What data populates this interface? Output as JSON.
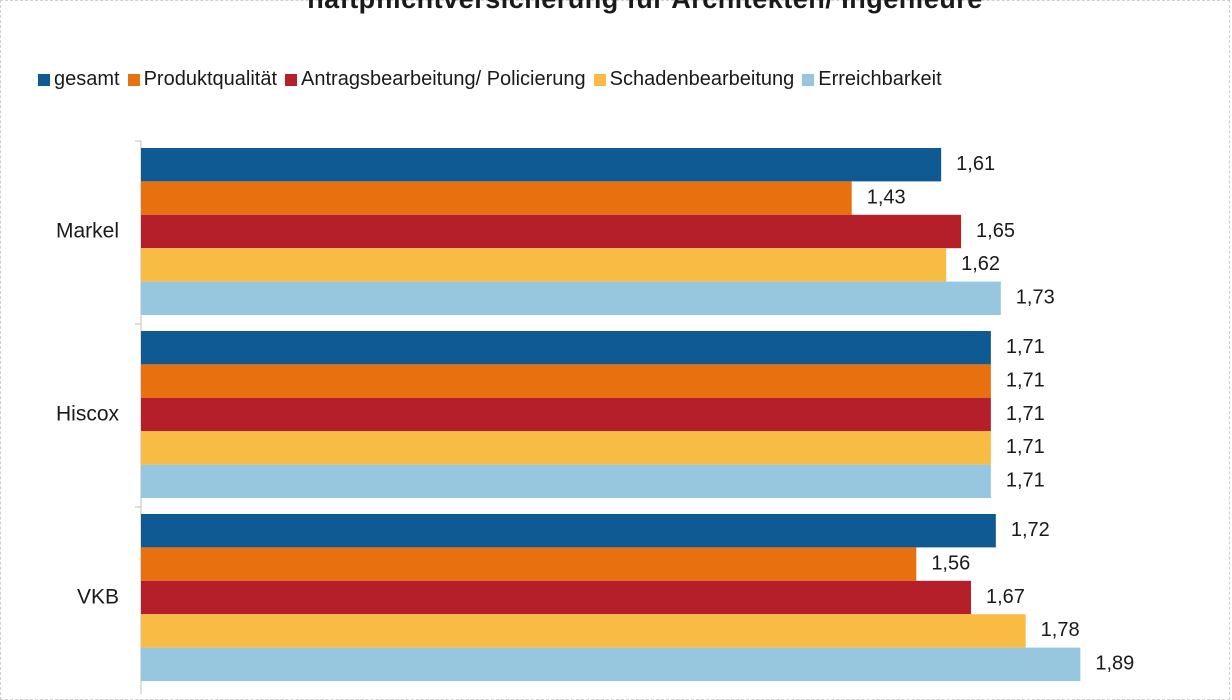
{
  "chart_data": {
    "type": "bar",
    "orientation": "horizontal",
    "title": "haftpflichtversicherung für Architekten/ Ingenieure",
    "categories": [
      "Markel",
      "Hiscox",
      "VKB"
    ],
    "series": [
      {
        "name": "gesamt",
        "color": "#0f5a93",
        "values": [
          1.61,
          1.71,
          1.72
        ],
        "labels": [
          "1,61",
          "1,71",
          "1,72"
        ]
      },
      {
        "name": "Produktqualität",
        "color": "#e8700f",
        "values": [
          1.43,
          1.71,
          1.56
        ],
        "labels": [
          "1,43",
          "1,71",
          "1,56"
        ]
      },
      {
        "name": "Antragsbearbeitung/ Policierung",
        "color": "#b51f2a",
        "values": [
          1.65,
          1.71,
          1.67
        ],
        "labels": [
          "1,65",
          "1,71",
          "1,67"
        ]
      },
      {
        "name": "Schadenbearbeitung",
        "color": "#f8bb44",
        "values": [
          1.62,
          1.71,
          1.78
        ],
        "labels": [
          "1,62",
          "1,71",
          "1,78"
        ]
      },
      {
        "name": "Erreichbarkeit",
        "color": "#97c6df",
        "values": [
          1.73,
          1.71,
          1.89
        ],
        "labels": [
          "1,73",
          "1,71",
          "1,89"
        ]
      }
    ],
    "xlim": [
      0,
      2
    ],
    "grid": false,
    "legend_position": "top"
  }
}
